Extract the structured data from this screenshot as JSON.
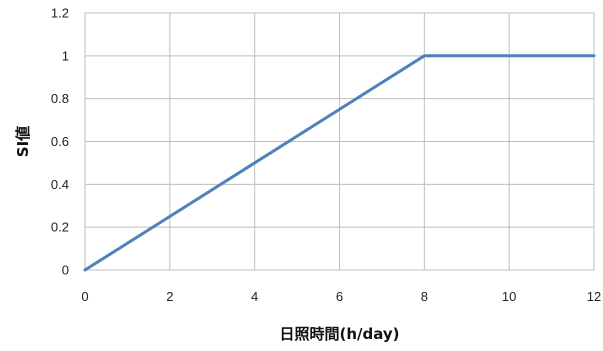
{
  "chart_data": {
    "type": "line",
    "xlabel": "日照時間(h/day)",
    "ylabel": "SI値",
    "xlim": [
      0,
      12
    ],
    "ylim": [
      0,
      1.2
    ],
    "x_ticks": [
      "0",
      "2",
      "4",
      "6",
      "8",
      "10",
      "12"
    ],
    "y_ticks": [
      "0",
      "0.2",
      "0.4",
      "0.6",
      "0.8",
      "1",
      "1.2"
    ],
    "grid": true,
    "series": [
      {
        "x": [
          0,
          8,
          12
        ],
        "y": [
          0,
          1,
          1
        ],
        "color": "#4f81bd"
      }
    ]
  }
}
